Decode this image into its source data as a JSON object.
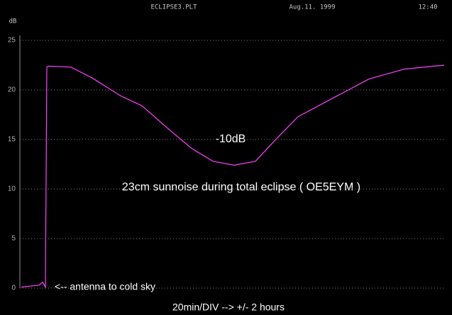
{
  "chart_data": {
    "type": "line",
    "header": [
      "ECLIPSE3.PLT",
      "Aug.11. 1999",
      "12:40"
    ],
    "ylabel": "dB",
    "annotations": [
      "-10dB",
      "23cm sunnoise during total eclipse ( OE5EYM )",
      "<-- antenna to cold sky",
      "20min/DIV --> +/- 2 hours"
    ],
    "x": [
      0.8,
      10.8,
      12.8,
      14.4,
      15.2,
      16,
      28.8,
      40.8,
      56.8,
      68.8,
      84.8,
      96.8,
      108.8,
      120.8,
      132.8,
      144.8,
      156.8,
      176.8,
      196.8,
      216.8,
      239.2
    ],
    "series": [
      {
        "color": "#ff40ff",
        "values": [
          0.1,
          0.3,
          0.6,
          0.1,
          22.3,
          22.4,
          22.3,
          21.2,
          19.4,
          18.4,
          15.9,
          14.1,
          12.8,
          12.4,
          12.8,
          15.1,
          17.3,
          19.2,
          21.1,
          22.1,
          22.5
        ]
      }
    ],
    "xlim": [
      0,
      240
    ],
    "ylim": [
      0,
      25
    ],
    "yticks": [
      0,
      5,
      10,
      15,
      20,
      25
    ],
    "grid": true
  }
}
